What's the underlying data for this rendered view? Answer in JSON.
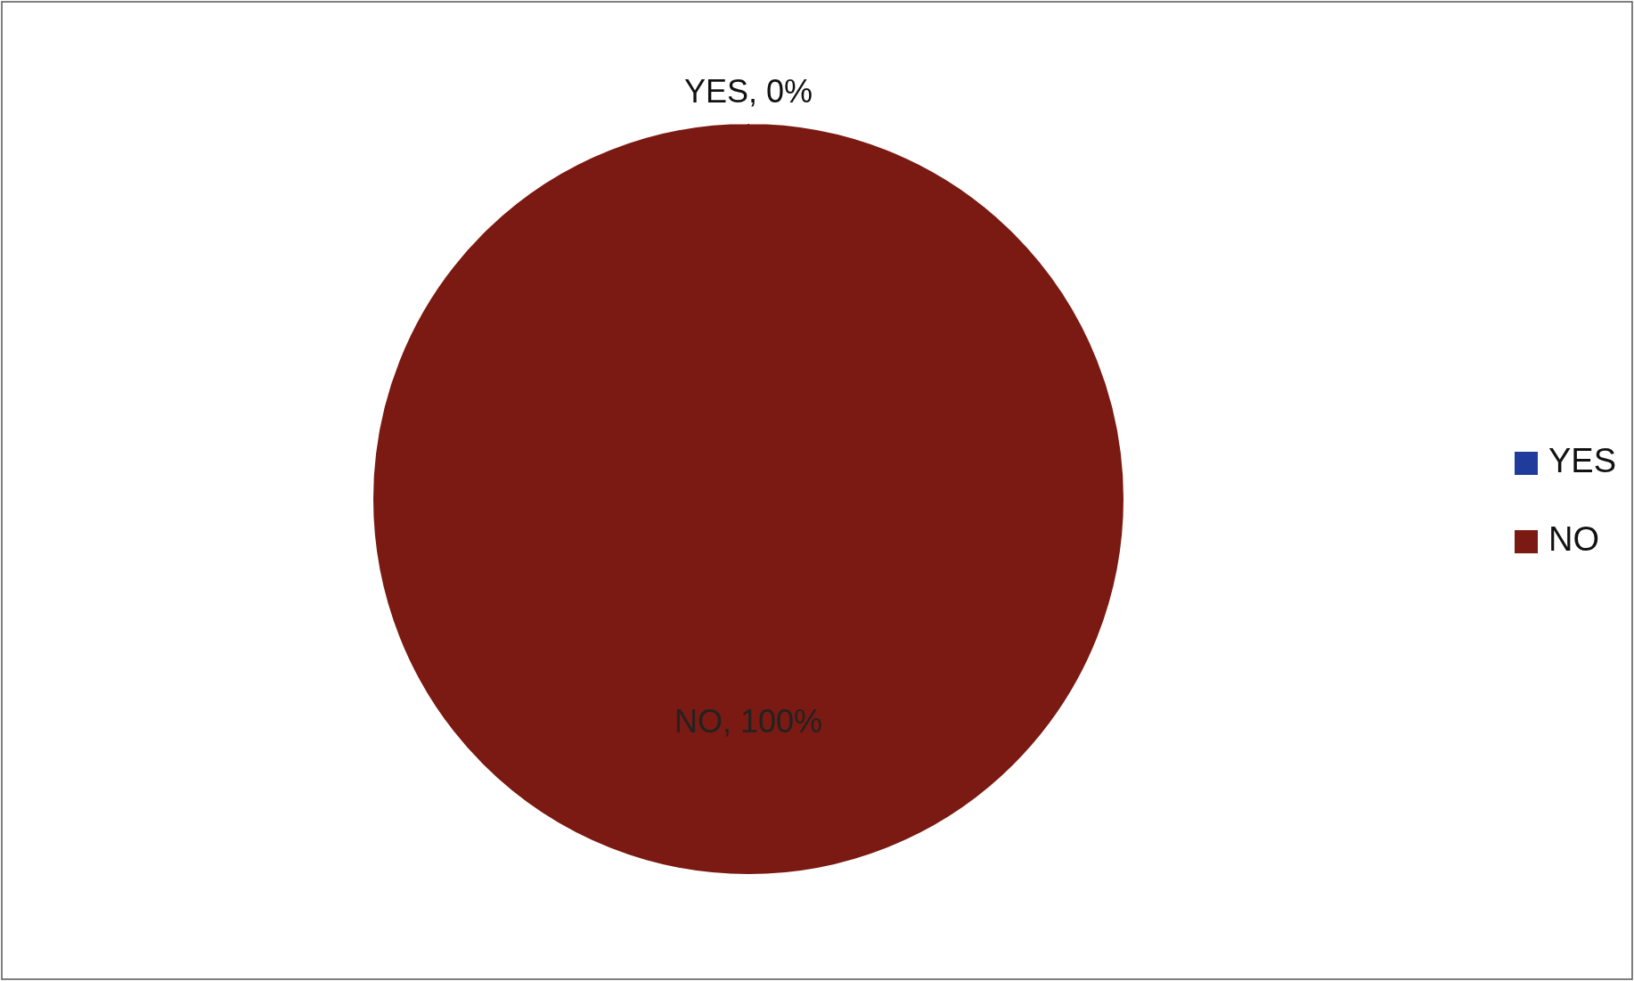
{
  "chart_data": {
    "type": "pie",
    "categories": [
      "YES",
      "NO"
    ],
    "values": [
      0,
      100
    ],
    "colors": [
      "#1f3c9c",
      "#7b1a12"
    ],
    "value_labels": [
      "YES, 0%",
      "NO, 100%"
    ],
    "legend": "right"
  }
}
